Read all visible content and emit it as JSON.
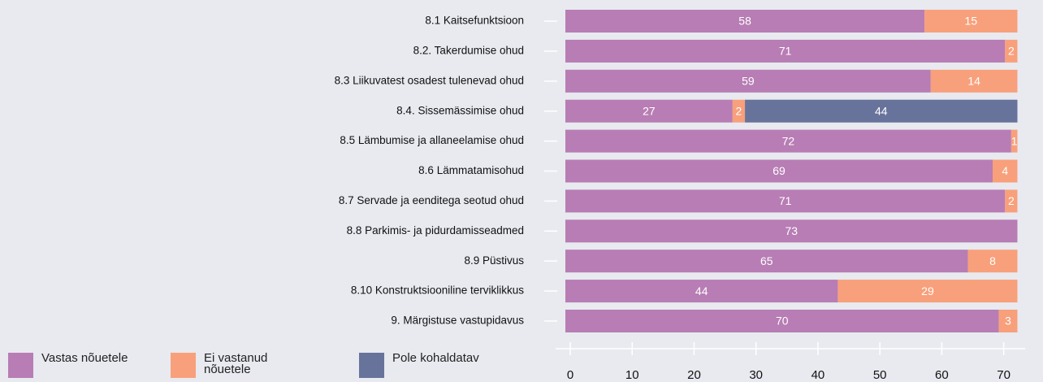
{
  "chart_data": {
    "type": "stacked-barh",
    "categories": [
      "8.1 Kaitsefunktsioon",
      "8.2. Takerdumise ohud",
      "8.3 Liikuvatest osadest tulenevad ohud",
      "8.4. Sissemässimise ohud",
      "8.5 Lämbumise ja allaneelamise ohud",
      "8.6 Lämmatamisohud",
      "8.7 Servade ja eenditega seotud ohud",
      "8.8 Parkimis- ja pidurdamisseadmed",
      "8.9 Püstivus",
      "8.10 Konstruktsiooniline terviklikkus",
      "9. Märgistuse vastupidavus"
    ],
    "series": [
      {
        "name": "Vastas nõuetele",
        "color": "#b77db4",
        "values": [
          58,
          71,
          59,
          27,
          72,
          69,
          71,
          73,
          65,
          44,
          70
        ]
      },
      {
        "name": "Ei vastanud nõuetele",
        "color": "#f8a07b",
        "values": [
          15,
          2,
          14,
          2,
          1,
          4,
          2,
          null,
          8,
          29,
          3
        ]
      },
      {
        "name": "Pole kohaldatav",
        "color": "#67739b",
        "values": [
          null,
          null,
          null,
          44,
          null,
          null,
          null,
          null,
          null,
          null,
          null
        ]
      }
    ],
    "xlim": [
      0,
      73
    ],
    "xticks": [
      0,
      10,
      20,
      30,
      40,
      50,
      60,
      70
    ]
  }
}
